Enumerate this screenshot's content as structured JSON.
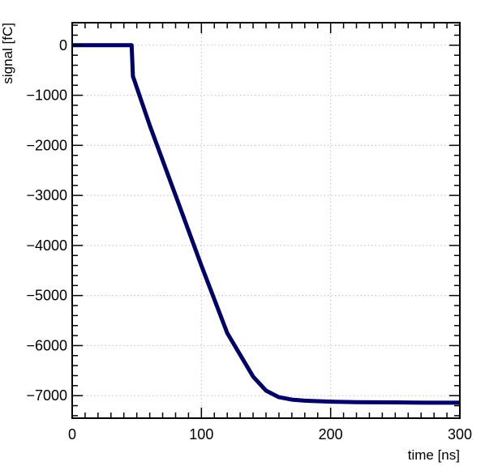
{
  "chart_data": {
    "type": "line",
    "title": "",
    "xlabel": "time [ns]",
    "ylabel": "signal [fC]",
    "xlim": [
      0,
      300
    ],
    "ylim": [
      -7450,
      450
    ],
    "grid": true,
    "x_ticks": [
      0,
      100,
      200,
      300
    ],
    "x_tick_labels": [
      "0",
      "100",
      "200",
      "300"
    ],
    "y_ticks": [
      0,
      -1000,
      -2000,
      -3000,
      -4000,
      -5000,
      -6000,
      -7000
    ],
    "y_tick_labels": [
      "0",
      "−1000",
      "−2000",
      "−3000",
      "−4000",
      "−5000",
      "−6000",
      "−7000"
    ],
    "line_color": "#000066",
    "series": [
      {
        "name": "",
        "x": [
          0,
          46,
          47,
          60,
          80,
          100,
          120,
          140,
          150,
          160,
          170,
          180,
          190,
          200,
          220,
          250,
          275,
          300
        ],
        "y": [
          0,
          0,
          -620,
          -1600,
          -3000,
          -4400,
          -5750,
          -6620,
          -6900,
          -7030,
          -7080,
          -7100,
          -7110,
          -7120,
          -7130,
          -7135,
          -7140,
          -7140
        ]
      }
    ]
  }
}
